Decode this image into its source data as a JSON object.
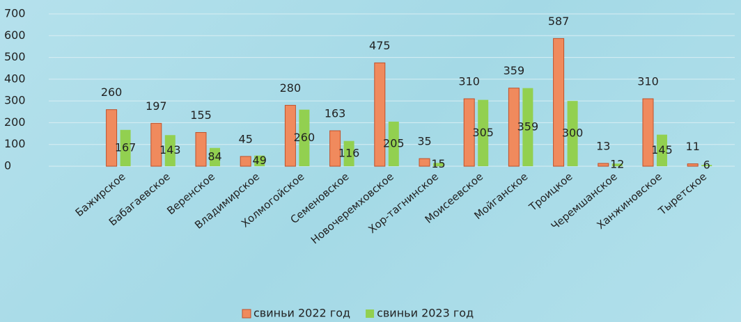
{
  "chart_data": {
    "type": "bar",
    "categories": [
      "Бажирское",
      "Бабагаевское",
      "Веренское",
      "Владимирское",
      "Холмогойское",
      "Семеновское",
      "Новочеремховское",
      "Хор-тагнинское",
      "Моисеевское",
      "Мойганское",
      "Троицкое",
      "Черемшанское",
      "Ханжиновское",
      "Тыретское"
    ],
    "series": [
      {
        "name": "свиньи 2022 год",
        "color": "#f08a5d",
        "values": [
          260,
          197,
          155,
          45,
          280,
          163,
          475,
          35,
          310,
          359,
          587,
          13,
          310,
          11
        ]
      },
      {
        "name": "свиньи 2023 год",
        "color": "#92d050",
        "values": [
          167,
          143,
          84,
          49,
          260,
          116,
          205,
          15,
          305,
          359,
          300,
          12,
          145,
          6
        ]
      }
    ],
    "ylim": [
      0,
      700
    ],
    "yticks": [
      0,
      100,
      200,
      300,
      400,
      500,
      600,
      700
    ],
    "grid": true,
    "legend": "bottom"
  }
}
